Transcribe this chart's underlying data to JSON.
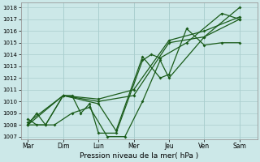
{
  "xlabel": "Pression niveau de la mer( hPa )",
  "ylabel": "",
  "ylim": [
    1007,
    1018
  ],
  "yticks": [
    1007,
    1008,
    1009,
    1010,
    1011,
    1012,
    1013,
    1014,
    1015,
    1016,
    1017,
    1018
  ],
  "x_labels": [
    "Mar",
    "Dim",
    "Lun",
    "Mer",
    "Jeu",
    "Ven",
    "Sam"
  ],
  "day_x": [
    0,
    1,
    2,
    3,
    4,
    5,
    6
  ],
  "background_color": "#cce8e8",
  "grid_color": "#aacece",
  "line_color": "#1a5c1a",
  "line1_x": [
    0,
    0.25,
    0.5,
    1.0,
    1.25,
    1.5,
    1.75,
    2.0,
    2.5,
    3.25,
    3.5,
    3.75,
    4.5,
    5.5,
    6.0
  ],
  "line1_y": [
    1008.0,
    1009.0,
    1008.0,
    1010.5,
    1010.5,
    1009.0,
    1009.8,
    1007.3,
    1007.3,
    1013.5,
    1014.0,
    1013.7,
    1015.0,
    1017.5,
    1017.0
  ],
  "line2_x": [
    0,
    0.25,
    0.75,
    1.25,
    1.75,
    2.25,
    2.75,
    3.25,
    3.75,
    4.0,
    5.0,
    6.0
  ],
  "line2_y": [
    1008.5,
    1008.0,
    1008.0,
    1009.0,
    1009.5,
    1007.0,
    1007.0,
    1010.0,
    1013.5,
    1012.0,
    1015.5,
    1018.0
  ],
  "line3_x": [
    0,
    1.0,
    2.0,
    3.0,
    4.0,
    5.0,
    6.0
  ],
  "line3_y": [
    1008.0,
    1010.5,
    1010.0,
    1010.5,
    1015.0,
    1015.5,
    1017.0
  ],
  "line4_x": [
    0,
    1.0,
    2.0,
    3.0,
    4.0,
    5.0,
    6.0
  ],
  "line4_y": [
    1008.2,
    1010.5,
    1010.2,
    1011.0,
    1015.2,
    1016.0,
    1017.2
  ],
  "line5_x": [
    0,
    0.5,
    1.0,
    2.0,
    2.5,
    3.25,
    3.75,
    4.0,
    4.5,
    5.0,
    5.5,
    6.0
  ],
  "line5_y": [
    1008.0,
    1008.0,
    1010.5,
    1009.8,
    1007.5,
    1013.8,
    1012.0,
    1012.3,
    1016.2,
    1014.8,
    1015.0,
    1015.0
  ]
}
